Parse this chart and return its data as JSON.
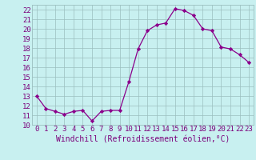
{
  "x": [
    0,
    1,
    2,
    3,
    4,
    5,
    6,
    7,
    8,
    9,
    10,
    11,
    12,
    13,
    14,
    15,
    16,
    17,
    18,
    19,
    20,
    21,
    22,
    23
  ],
  "y": [
    13,
    11.7,
    11.4,
    11.1,
    11.4,
    11.5,
    10.4,
    11.4,
    11.5,
    11.5,
    14.5,
    17.9,
    19.8,
    20.4,
    20.6,
    22.1,
    21.9,
    21.4,
    20.0,
    19.8,
    18.1,
    17.9,
    17.3,
    16.5
  ],
  "line_color": "#8B008B",
  "marker_color": "#8B008B",
  "bg_color": "#c8f0f0",
  "grid_color": "#9bbfbf",
  "xlabel": "Windchill (Refroidissement éolien,°C)",
  "xlim": [
    -0.5,
    23.5
  ],
  "ylim": [
    10,
    22.5
  ],
  "yticks": [
    10,
    11,
    12,
    13,
    14,
    15,
    16,
    17,
    18,
    19,
    20,
    21,
    22
  ],
  "xticks": [
    0,
    1,
    2,
    3,
    4,
    5,
    6,
    7,
    8,
    9,
    10,
    11,
    12,
    13,
    14,
    15,
    16,
    17,
    18,
    19,
    20,
    21,
    22,
    23
  ],
  "tick_color": "#7b007b",
  "font_color": "#7b007b",
  "font_size": 6.5,
  "xlabel_font_size": 7
}
